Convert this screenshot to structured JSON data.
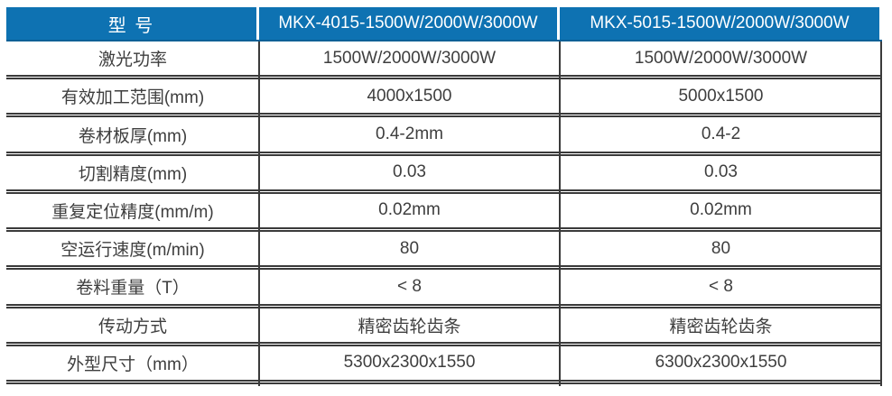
{
  "table": {
    "title": "laser-cutter-spec-table",
    "colors": {
      "header_bg": "#0e72b2",
      "header_text": "#ffffff",
      "body_text": "#3e3e3e",
      "border": "#3a3a3a"
    },
    "header": {
      "col1": "型 号",
      "col2": "MKX-4015-1500W/2000W/3000W",
      "col3": "MKX-5015-1500W/2000W/3000W"
    },
    "rows": [
      {
        "label": "激光功率",
        "col2": "1500W/2000W/3000W",
        "col3": "1500W/2000W/3000W"
      },
      {
        "label": "有效加工范围(mm)",
        "col2": "4000x1500",
        "col3": "5000x1500"
      },
      {
        "label": "卷材板厚(mm)",
        "col2": "0.4-2mm",
        "col3": "0.4-2"
      },
      {
        "label": "切割精度(mm)",
        "col2": "0.03",
        "col3": "0.03"
      },
      {
        "label": "重复定位精度(mm/m)",
        "col2": "0.02mm",
        "col3": "0.02mm"
      },
      {
        "label": "空运行速度(m/min)",
        "col2": "80",
        "col3": "80"
      },
      {
        "label": "卷料重量（T）",
        "col2": "< 8",
        "col3": "< 8"
      },
      {
        "label": "传动方式",
        "col2": "精密齿轮齿条",
        "col3": "精密齿轮齿条"
      },
      {
        "label": "外型尺寸（mm）",
        "col2": "5300x2300x1550",
        "col3": "6300x2300x1550"
      }
    ]
  }
}
